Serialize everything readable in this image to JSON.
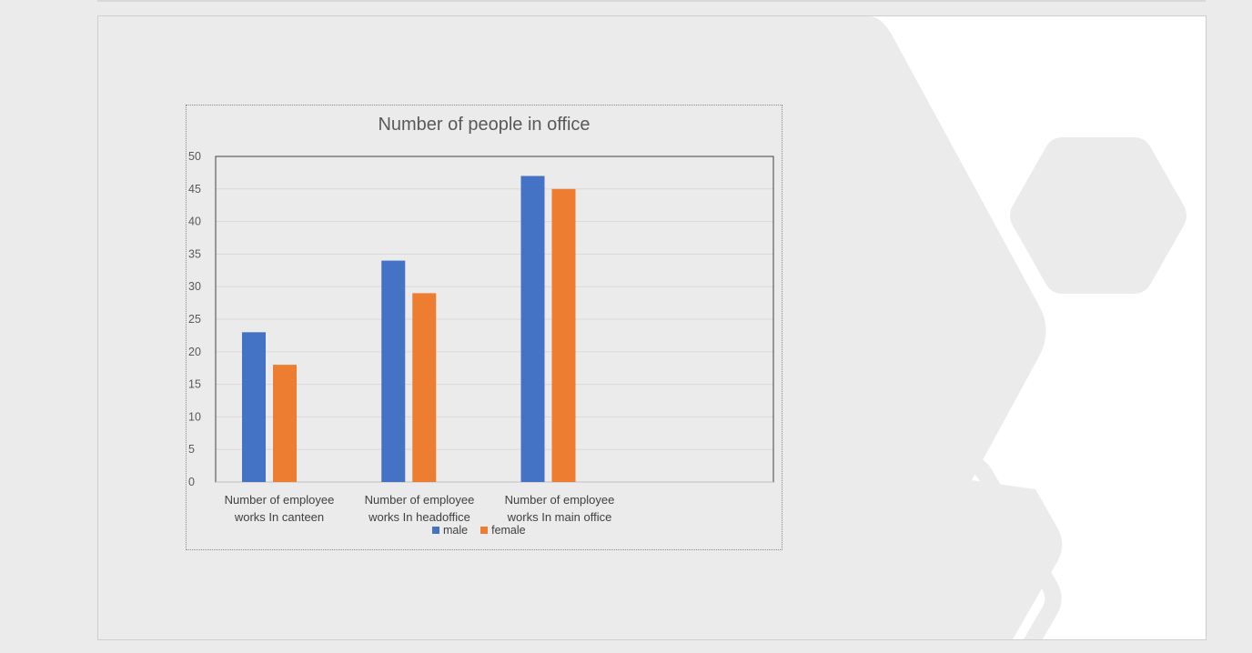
{
  "colors": {
    "male": "#4472c4",
    "female": "#ed7d31",
    "slide_background": "#ebebeb",
    "hexagon_white": "#ffffff"
  },
  "chart_data": {
    "type": "bar",
    "title": "Number of people in office",
    "categories": [
      [
        "Number of employee",
        "works In canteen"
      ],
      [
        "Number of employee",
        "works In headoffice"
      ],
      [
        "Number of employee",
        "works In main office"
      ]
    ],
    "series": [
      {
        "name": "male",
        "values": [
          23,
          34,
          47
        ]
      },
      {
        "name": "female",
        "values": [
          18,
          29,
          45
        ]
      }
    ],
    "y_ticks": [
      "0",
      "5",
      "10",
      "15",
      "20",
      "25",
      "30",
      "35",
      "40",
      "45",
      "50"
    ],
    "ylim": [
      0,
      50
    ],
    "xlabel": "",
    "ylabel": "",
    "grid": true,
    "legend_position": "bottom"
  }
}
